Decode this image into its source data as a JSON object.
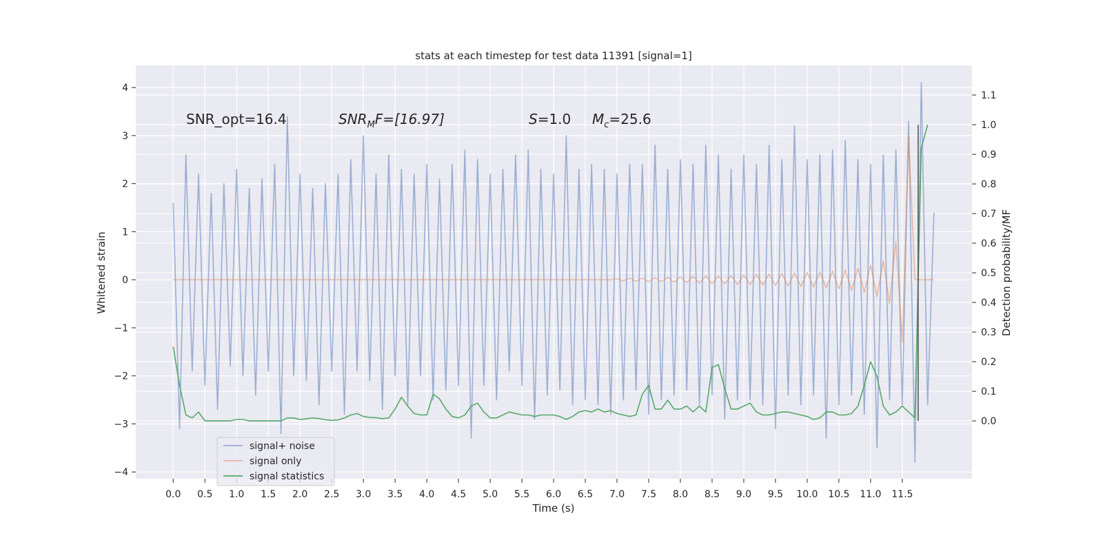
{
  "chart_data": {
    "type": "line",
    "title": "stats at each timestep for test data 11391 [signal=1]",
    "xlabel": "Time (s)",
    "ylabel": "Whitened strain",
    "y2label": "Detection probability/MF",
    "annotations": [
      [
        "SNR_opt=16.4"
      ],
      [
        "SNR",
        "M",
        "F=[16.97]"
      ],
      [
        "S",
        "=1.0"
      ],
      [
        "M",
        "c",
        "=25.6"
      ]
    ],
    "x": [
      0,
      0.1,
      0.2,
      0.3,
      0.4,
      0.5,
      0.6,
      0.7,
      0.8,
      0.9,
      1,
      1.1,
      1.2,
      1.3,
      1.4,
      1.5,
      1.6,
      1.7,
      1.8,
      1.9,
      2,
      2.1,
      2.2,
      2.3,
      2.4,
      2.5,
      2.6,
      2.7,
      2.8,
      2.9,
      3,
      3.1,
      3.2,
      3.3,
      3.4,
      3.5,
      3.6,
      3.7,
      3.8,
      3.9,
      4,
      4.1,
      4.2,
      4.3,
      4.4,
      4.5,
      4.6,
      4.7,
      4.8,
      4.9,
      5,
      5.1,
      5.2,
      5.3,
      5.4,
      5.5,
      5.6,
      5.7,
      5.8,
      5.9,
      6,
      6.1,
      6.2,
      6.3,
      6.4,
      6.5,
      6.6,
      6.7,
      6.8,
      6.9,
      7,
      7.1,
      7.2,
      7.3,
      7.4,
      7.5,
      7.6,
      7.7,
      7.8,
      7.9,
      8,
      8.1,
      8.2,
      8.3,
      8.4,
      8.5,
      8.6,
      8.7,
      8.8,
      8.9,
      9,
      9.1,
      9.2,
      9.3,
      9.4,
      9.5,
      9.6,
      9.7,
      9.8,
      9.9,
      10,
      10.1,
      10.2,
      10.3,
      10.4,
      10.5,
      10.6,
      10.7,
      10.8,
      10.9,
      11,
      11.1,
      11.2,
      11.3,
      11.4,
      11.5,
      11.6,
      11.7,
      11.8,
      11.9,
      12
    ],
    "series": [
      {
        "name": "signal+ noise",
        "color": "#4c72b0",
        "opacity": 0.5,
        "values": [
          1.6,
          -3.1,
          2.6,
          -1.9,
          2.2,
          -2.2,
          1.8,
          -2.7,
          2.0,
          -1.8,
          2.3,
          -2.0,
          1.9,
          -2.4,
          2.1,
          -1.9,
          2.4,
          -3.2,
          3.4,
          -2.0,
          2.2,
          -2.1,
          1.9,
          -2.6,
          2.0,
          -1.9,
          2.2,
          -2.8,
          2.5,
          -1.9,
          3.0,
          -2.1,
          2.2,
          -2.7,
          2.6,
          -2.0,
          2.3,
          -2.6,
          2.2,
          -2.0,
          2.4,
          -2.5,
          2.1,
          -2.3,
          2.4,
          -2.2,
          2.7,
          -3.3,
          2.5,
          -2.2,
          2.2,
          -2.5,
          2.3,
          -1.9,
          2.6,
          -2.2,
          2.7,
          -2.9,
          2.3,
          -2.4,
          2.2,
          -2.3,
          3.0,
          -2.6,
          2.3,
          -2.5,
          2.4,
          -2.6,
          2.3,
          -2.8,
          2.2,
          -2.5,
          2.4,
          -2.3,
          2.4,
          -2.8,
          2.8,
          -2.5,
          2.3,
          -2.4,
          2.5,
          -2.3,
          2.4,
          -2.6,
          2.8,
          -2.4,
          2.6,
          -2.9,
          2.3,
          -2.5,
          2.6,
          -2.5,
          2.4,
          -2.6,
          2.8,
          -3.1,
          2.5,
          -2.4,
          3.2,
          -2.6,
          2.5,
          -2.4,
          2.6,
          -3.3,
          2.7,
          -2.6,
          2.9,
          -2.4,
          2.5,
          -2.8,
          2.4,
          -3.5,
          2.6,
          -2.5,
          2.7,
          -2.6,
          3.3,
          -3.8,
          4.1,
          -2.6,
          1.4
        ]
      },
      {
        "name": "signal only",
        "color": "#dd8452",
        "opacity": 0.5,
        "values": [
          0,
          0,
          0,
          0,
          0,
          0,
          0,
          0,
          0,
          0,
          0,
          0,
          0,
          0,
          0,
          0,
          0,
          0,
          0,
          0,
          0,
          0,
          0,
          0,
          0,
          0,
          0,
          0,
          0,
          0,
          0,
          0,
          0,
          0,
          0,
          0,
          0,
          0,
          0,
          0,
          0,
          0,
          0,
          0,
          0,
          0,
          0,
          0,
          0,
          0,
          0,
          0,
          0,
          0,
          0,
          0,
          0,
          0,
          0,
          0,
          0,
          0,
          0,
          0,
          0,
          0,
          0,
          0,
          0,
          0,
          0.02,
          -0.02,
          0.03,
          -0.03,
          0.03,
          -0.04,
          0.04,
          -0.04,
          0.05,
          -0.05,
          0.06,
          -0.06,
          0.07,
          -0.07,
          0.08,
          -0.08,
          0.08,
          -0.09,
          0.09,
          -0.1,
          0.1,
          -0.1,
          0.11,
          -0.11,
          0.12,
          -0.12,
          0.13,
          -0.13,
          0.14,
          -0.14,
          0.15,
          -0.15,
          0.16,
          -0.17,
          0.18,
          -0.19,
          0.2,
          -0.22,
          0.24,
          -0.26,
          0.3,
          -0.35,
          0.4,
          -0.5,
          0.8,
          -1.3,
          3.0,
          0,
          0,
          0,
          0
        ]
      },
      {
        "name": "signal statistics",
        "color": "#55a868",
        "opacity": 1,
        "axis": "y2",
        "values": [
          0.25,
          0.12,
          0.02,
          0.01,
          0.03,
          0.0,
          0.0,
          0.0,
          0.0,
          0.0,
          0.005,
          0.005,
          0.0,
          0.0,
          0.0,
          0.0,
          0.0,
          0.0,
          0.01,
          0.01,
          0.005,
          0.007,
          0.01,
          0.008,
          0.004,
          0.002,
          0.003,
          0.01,
          0.02,
          0.025,
          0.015,
          0.012,
          0.011,
          0.008,
          0.01,
          0.04,
          0.08,
          0.05,
          0.025,
          0.02,
          0.02,
          0.09,
          0.075,
          0.04,
          0.015,
          0.01,
          0.02,
          0.05,
          0.06,
          0.03,
          0.01,
          0.01,
          0.02,
          0.03,
          0.025,
          0.02,
          0.02,
          0.015,
          0.02,
          0.02,
          0.02,
          0.015,
          0.005,
          0.015,
          0.03,
          0.035,
          0.03,
          0.04,
          0.03,
          0.035,
          0.025,
          0.02,
          0.015,
          0.02,
          0.09,
          0.12,
          0.04,
          0.04,
          0.07,
          0.04,
          0.04,
          0.05,
          0.03,
          0.05,
          0.03,
          0.18,
          0.19,
          0.11,
          0.04,
          0.04,
          0.05,
          0.06,
          0.03,
          0.02,
          0.02,
          0.025,
          0.03,
          0.03,
          0.025,
          0.02,
          0.015,
          0.005,
          0.01,
          0.03,
          0.03,
          0.02,
          0.02,
          0.025,
          0.05,
          0.12,
          0.2,
          0.15,
          0.05,
          0.02,
          0.03,
          0.05,
          0.03,
          0.01,
          0.92,
          1.0,
          null
        ]
      }
    ],
    "vline": {
      "x": 11.75,
      "y2": [
        0,
        1
      ],
      "color": "#555555"
    },
    "xlim": [
      -0.59,
      12.6
    ],
    "ylim": [
      -4.14,
      4.46
    ],
    "y2lim": [
      -0.195,
      1.2
    ],
    "xticks": [
      {
        "value": 0,
        "label": "0.0"
      },
      0.5,
      {
        "value": 1,
        "label": "1.0"
      },
      1.5,
      {
        "value": 2,
        "label": "2.0"
      },
      2.5,
      {
        "value": 3,
        "label": "3.0"
      },
      3.5,
      {
        "value": 4,
        "label": "4.0"
      },
      4.5,
      {
        "value": 5,
        "label": "5.0"
      },
      5.5,
      {
        "value": 6,
        "label": "6.0"
      },
      6.5,
      {
        "value": 7,
        "label": "7.0"
      },
      7.5,
      {
        "value": 8,
        "label": "8.0"
      },
      8.5,
      {
        "value": 9,
        "label": "9.0"
      },
      9.5,
      {
        "value": 10,
        "label": "10.0"
      },
      10.5,
      {
        "value": 11,
        "label": "11.0"
      },
      11.5
    ],
    "yticks": [
      {
        "value": -4,
        "label": "−4"
      },
      {
        "value": -3,
        "label": "−3"
      },
      {
        "value": -2,
        "label": "−2"
      },
      {
        "value": -1,
        "label": "−1"
      },
      0,
      1,
      2,
      3,
      4
    ],
    "y2ticks": [
      {
        "value": 0,
        "label": "0.0"
      },
      0.1,
      0.2,
      0.3,
      0.4,
      0.5,
      0.6,
      0.7,
      0.8,
      0.9,
      {
        "value": 1,
        "label": "1.0"
      },
      1.1
    ],
    "grid": true,
    "legend": "lower left"
  }
}
